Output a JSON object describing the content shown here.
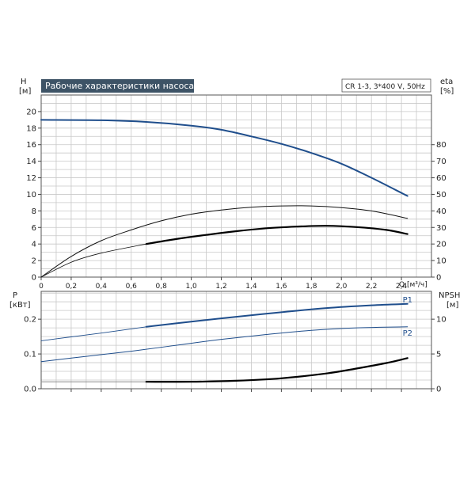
{
  "chart_data": [
    {
      "type": "line",
      "title": "Рабочие характеристики насоса",
      "subtitle": "CR 1-3, 3*400 V, 50Hz",
      "xlabel": "Q [м³/ч]",
      "x_unit_label": "Q [м³/ч]",
      "xlim": [
        0,
        2.6
      ],
      "xticks": [
        "0",
        "0,2",
        "0,4",
        "0,6",
        "0,8",
        "1,0",
        "1,2",
        "1,4",
        "1,6",
        "1,8",
        "2,0",
        "2,2",
        "2,4"
      ],
      "ylabel_left": "H",
      "ylabel_left_unit": "[м]",
      "ylim_left": [
        0,
        22
      ],
      "yticks_left": [
        "0",
        "2",
        "4",
        "6",
        "8",
        "10",
        "12",
        "14",
        "16",
        "18",
        "20"
      ],
      "ylabel_right": "eta",
      "ylabel_right_unit": "[%]",
      "ylim_right": [
        0,
        110
      ],
      "yticks_right": [
        "0",
        "10",
        "20",
        "30",
        "40",
        "50",
        "60",
        "70",
        "80"
      ],
      "grid": true,
      "series": [
        {
          "axis": "left",
          "color": "#1f4e8c",
          "width": 2,
          "x": [
            0,
            0.4,
            0.7,
            1.0,
            1.2,
            1.4,
            1.6,
            1.8,
            2.0,
            2.2,
            2.44
          ],
          "values": [
            19.0,
            18.95,
            18.75,
            18.3,
            17.8,
            17.0,
            16.1,
            15.0,
            13.7,
            12.0,
            9.8
          ]
        },
        {
          "axis": "left",
          "color": "#111111",
          "width": 1,
          "x": [
            0,
            0.2,
            0.4,
            0.6,
            0.8,
            1.0,
            1.2,
            1.4,
            1.6,
            1.8,
            2.0,
            2.2,
            2.44
          ],
          "values": [
            0,
            2.5,
            4.4,
            5.7,
            6.8,
            7.6,
            8.1,
            8.45,
            8.6,
            8.6,
            8.4,
            8.0,
            7.1
          ]
        },
        {
          "axis": "left",
          "color": "#111111",
          "width": 0.8,
          "x": [
            0,
            0.2,
            0.4,
            0.7
          ],
          "values": [
            0,
            1.8,
            2.9,
            4.0
          ]
        },
        {
          "axis": "left",
          "color": "#000000",
          "width": 2.2,
          "x": [
            0.7,
            0.9,
            1.1,
            1.3,
            1.5,
            1.7,
            1.9,
            2.1,
            2.3,
            2.44
          ],
          "values": [
            4.0,
            4.6,
            5.1,
            5.55,
            5.9,
            6.1,
            6.2,
            6.05,
            5.7,
            5.2
          ]
        }
      ]
    },
    {
      "type": "line",
      "xlim": [
        0,
        2.6
      ],
      "ylabel_left": "P",
      "ylabel_left_unit": "[кВт]",
      "ylim_left": [
        0,
        0.28
      ],
      "yticks_left": [
        "0.0",
        "0.1",
        "0.2"
      ],
      "ylabel_right": "NPSH",
      "ylabel_right_unit": "[м]",
      "ylim_right": [
        0,
        14
      ],
      "yticks_right": [
        "0",
        "5",
        "10"
      ],
      "grid": true,
      "series": [
        {
          "name": "P1",
          "axis": "left",
          "color": "#1f4e8c",
          "width": 0.9,
          "x": [
            0,
            0.2,
            0.4,
            0.7
          ],
          "values": [
            0.138,
            0.149,
            0.16,
            0.178
          ]
        },
        {
          "name": "P1",
          "axis": "left",
          "color": "#1f4e8c",
          "width": 2,
          "x": [
            0.7,
            1.0,
            1.3,
            1.6,
            1.9,
            2.2,
            2.44
          ],
          "values": [
            0.178,
            0.193,
            0.207,
            0.22,
            0.232,
            0.24,
            0.244
          ]
        },
        {
          "name": "P2",
          "axis": "left",
          "color": "#1f4e8c",
          "width": 1,
          "x": [
            0,
            0.3,
            0.6,
            0.9,
            1.2,
            1.5,
            1.8,
            2.1,
            2.44
          ],
          "values": [
            0.078,
            0.093,
            0.108,
            0.125,
            0.142,
            0.156,
            0.168,
            0.175,
            0.178
          ]
        },
        {
          "axis": "right",
          "color": "#888888",
          "width": 1,
          "x": [
            0,
            0.7
          ],
          "values": [
            1.0,
            1.0
          ]
        },
        {
          "axis": "right",
          "color": "#000000",
          "width": 2.2,
          "x": [
            0.7,
            1.0,
            1.3,
            1.6,
            1.9,
            2.1,
            2.3,
            2.44
          ],
          "values": [
            1.0,
            1.0,
            1.15,
            1.5,
            2.2,
            2.9,
            3.7,
            4.4
          ]
        }
      ]
    }
  ]
}
